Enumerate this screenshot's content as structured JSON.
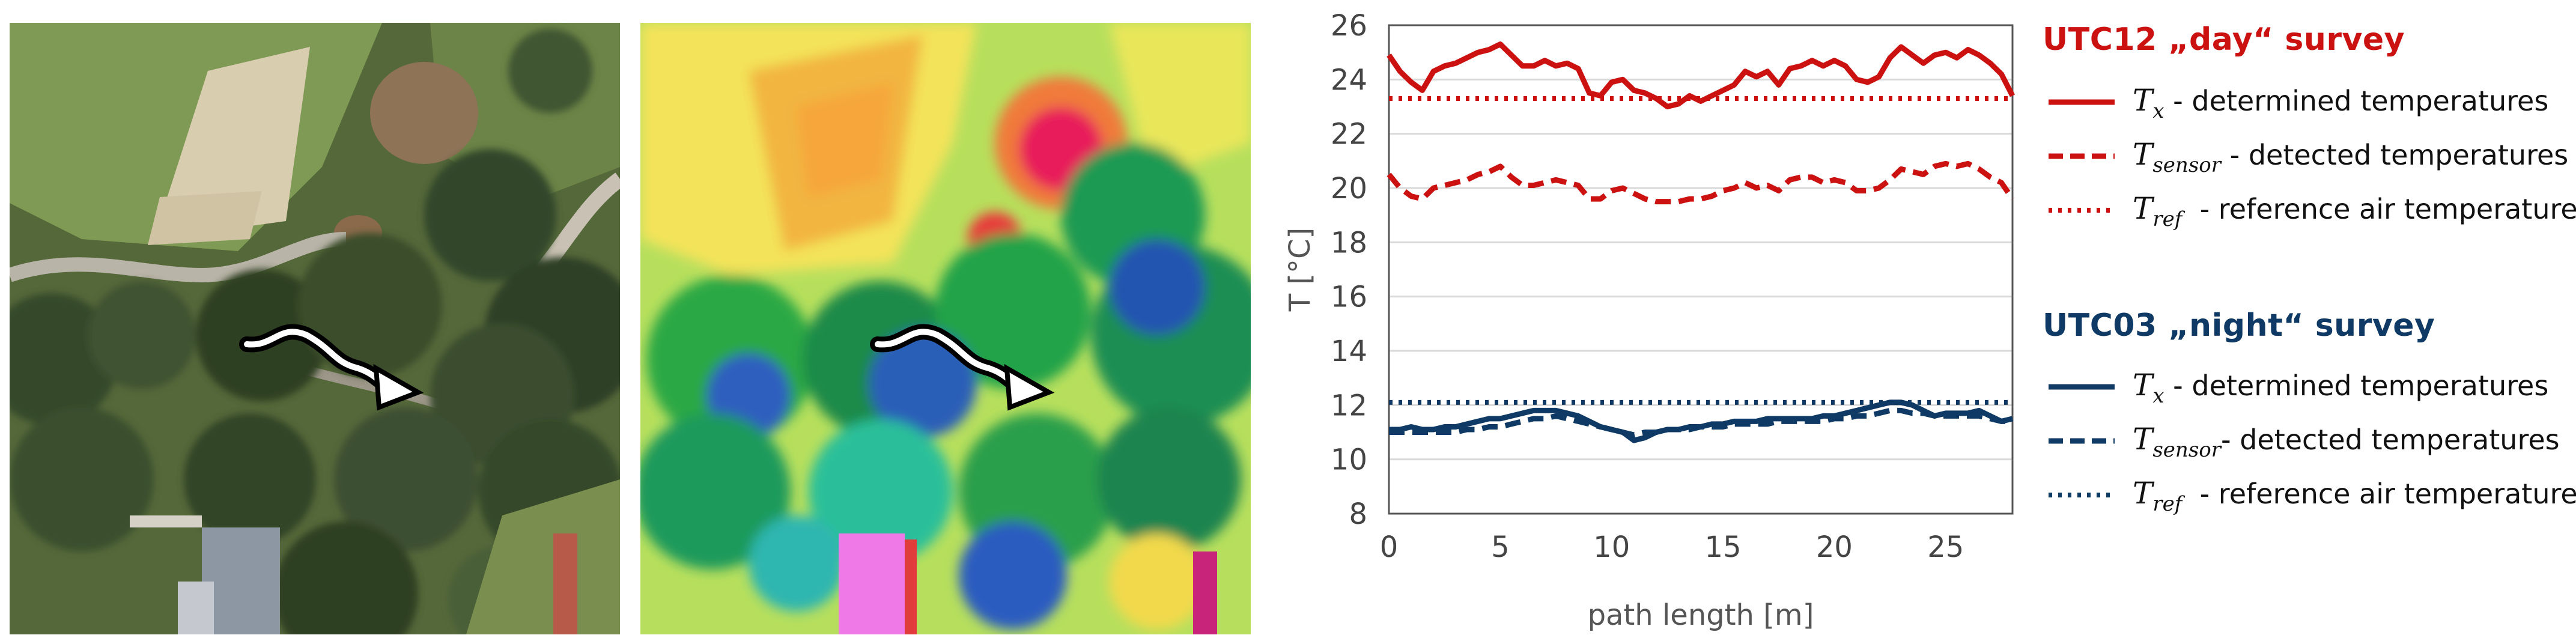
{
  "colors": {
    "day": "#cc1111",
    "night": "#103a66",
    "axis": "#555555",
    "grid": "#d9d9d9"
  },
  "images": {
    "aerial": {
      "name": "aerial-photo",
      "arrow": "path-arrow-icon"
    },
    "thermal": {
      "name": "thermal-map",
      "arrow": "path-arrow-icon"
    }
  },
  "chart_data": {
    "type": "line",
    "xlabel": "path length [m]",
    "ylabel": "T [°C]",
    "xlim": [
      0,
      28
    ],
    "ylim": [
      8,
      26
    ],
    "xticks": [
      0,
      5,
      10,
      15,
      20,
      25
    ],
    "yticks": [
      8,
      10,
      12,
      14,
      16,
      18,
      20,
      22,
      24,
      26
    ],
    "grid": "horizontal",
    "legend_position": "right",
    "x": [
      0,
      0.5,
      1,
      1.5,
      2,
      2.5,
      3,
      3.5,
      4,
      4.5,
      5,
      5.5,
      6,
      6.5,
      7,
      7.5,
      8,
      8.5,
      9,
      9.5,
      10,
      10.5,
      11,
      11.5,
      12,
      12.5,
      13,
      13.5,
      14,
      14.5,
      15,
      15.5,
      16,
      16.5,
      17,
      17.5,
      18,
      18.5,
      19,
      19.5,
      20,
      20.5,
      21,
      21.5,
      22,
      22.5,
      23,
      23.5,
      24,
      24.5,
      25,
      25.5,
      26,
      26.5,
      27,
      27.5,
      28
    ],
    "series": [
      {
        "name": "UTC12 Tx",
        "group": "day",
        "style": "solid",
        "values": [
          24.9,
          24.3,
          23.9,
          23.6,
          24.3,
          24.5,
          24.6,
          24.8,
          25.0,
          25.1,
          25.3,
          24.9,
          24.5,
          24.5,
          24.7,
          24.5,
          24.6,
          24.4,
          23.5,
          23.4,
          23.9,
          24.0,
          23.6,
          23.5,
          23.3,
          23.0,
          23.1,
          23.4,
          23.2,
          23.4,
          23.6,
          23.8,
          24.3,
          24.1,
          24.3,
          23.8,
          24.4,
          24.5,
          24.7,
          24.5,
          24.7,
          24.5,
          24.0,
          23.9,
          24.1,
          24.8,
          25.2,
          24.9,
          24.6,
          24.9,
          25.0,
          24.8,
          25.1,
          24.9,
          24.6,
          24.2,
          23.4
        ]
      },
      {
        "name": "UTC12 Tsensor",
        "group": "day",
        "style": "dashed",
        "values": [
          20.5,
          20.0,
          19.7,
          19.6,
          20.0,
          20.1,
          20.2,
          20.3,
          20.5,
          20.6,
          20.8,
          20.4,
          20.1,
          20.1,
          20.2,
          20.3,
          20.2,
          20.1,
          19.6,
          19.6,
          19.9,
          20.0,
          19.8,
          19.6,
          19.5,
          19.5,
          19.5,
          19.6,
          19.6,
          19.7,
          19.9,
          20.0,
          20.2,
          20.0,
          20.1,
          19.9,
          20.3,
          20.4,
          20.4,
          20.2,
          20.3,
          20.2,
          19.9,
          19.9,
          20.0,
          20.3,
          20.7,
          20.6,
          20.5,
          20.8,
          20.9,
          20.8,
          20.9,
          20.7,
          20.4,
          20.2,
          19.6
        ]
      },
      {
        "name": "UTC12 Tref",
        "group": "day",
        "style": "dotted",
        "constant": 23.3
      },
      {
        "name": "UTC03 Tx",
        "group": "night",
        "style": "solid",
        "values": [
          11.1,
          11.1,
          11.2,
          11.1,
          11.1,
          11.2,
          11.2,
          11.3,
          11.4,
          11.5,
          11.5,
          11.6,
          11.7,
          11.8,
          11.8,
          11.8,
          11.7,
          11.6,
          11.4,
          11.2,
          11.1,
          11.0,
          10.7,
          10.8,
          11.0,
          11.1,
          11.1,
          11.2,
          11.2,
          11.3,
          11.3,
          11.4,
          11.4,
          11.4,
          11.5,
          11.5,
          11.5,
          11.5,
          11.5,
          11.6,
          11.6,
          11.7,
          11.8,
          11.9,
          12.0,
          12.1,
          12.1,
          12.0,
          11.8,
          11.6,
          11.7,
          11.7,
          11.7,
          11.8,
          11.6,
          11.4,
          11.5
        ]
      },
      {
        "name": "UTC03 Tsensor",
        "group": "night",
        "style": "dashed",
        "values": [
          11.0,
          11.0,
          11.0,
          11.0,
          11.0,
          11.0,
          11.0,
          11.1,
          11.1,
          11.2,
          11.2,
          11.3,
          11.4,
          11.5,
          11.5,
          11.6,
          11.5,
          11.4,
          11.3,
          11.2,
          11.1,
          11.0,
          10.9,
          11.0,
          11.0,
          11.1,
          11.1,
          11.1,
          11.2,
          11.2,
          11.2,
          11.3,
          11.3,
          11.3,
          11.3,
          11.4,
          11.4,
          11.4,
          11.4,
          11.4,
          11.5,
          11.5,
          11.6,
          11.6,
          11.7,
          11.8,
          11.8,
          11.7,
          11.7,
          11.6,
          11.6,
          11.6,
          11.6,
          11.6,
          11.5,
          11.4,
          11.4
        ]
      },
      {
        "name": "UTC03 Tref",
        "group": "night",
        "style": "dotted",
        "constant": 12.1
      }
    ]
  },
  "legend": {
    "day": {
      "heading": "UTC12 „day“ survey",
      "items": [
        {
          "style": "solid",
          "symbol": "T",
          "subscript": "x",
          "label": " - determined temperatures"
        },
        {
          "style": "dashed",
          "symbol": "T",
          "subscript": "sensor",
          "label": " - detected temperatures"
        },
        {
          "style": "dotted",
          "symbol": "T",
          "subscript": "ref",
          "label": "  - reference air temperature"
        }
      ]
    },
    "night": {
      "heading": "UTC03 „night“ survey",
      "items": [
        {
          "style": "solid",
          "symbol": "T",
          "subscript": "x",
          "label": " - determined temperatures"
        },
        {
          "style": "dashed",
          "symbol": "T",
          "subscript": "sensor",
          "label": "- detected temperatures"
        },
        {
          "style": "dotted",
          "symbol": "T",
          "subscript": "ref",
          "label": "  - reference air temperature"
        }
      ]
    }
  }
}
